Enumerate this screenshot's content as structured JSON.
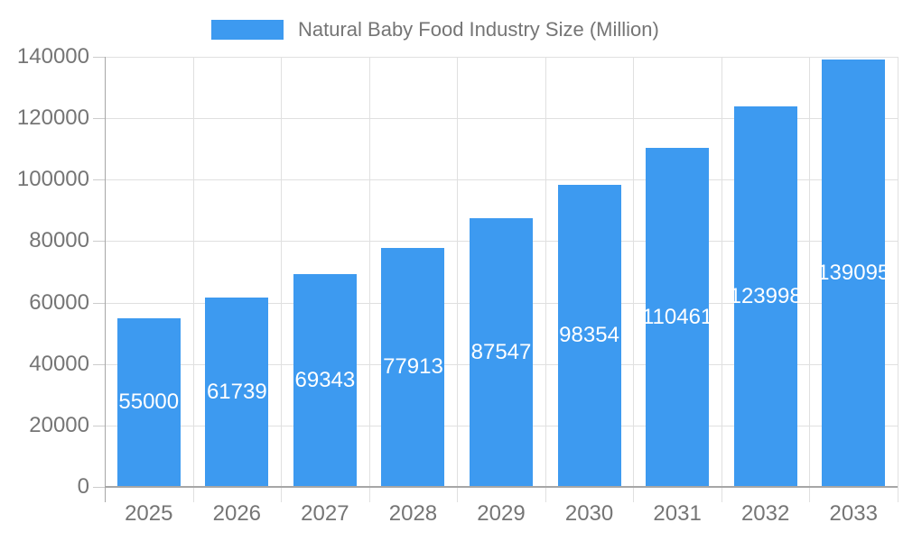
{
  "chart_data": {
    "type": "bar",
    "title": "",
    "legend": {
      "label": "Natural Baby Food Industry Size (Million)",
      "position": "top"
    },
    "categories": [
      "2025",
      "2026",
      "2027",
      "2028",
      "2029",
      "2030",
      "2031",
      "2032",
      "2033"
    ],
    "series": [
      {
        "name": "Natural Baby Food Industry Size (Million)",
        "values": [
          55000,
          61739,
          69343,
          77913,
          87547,
          98354,
          110461,
          123998,
          139095
        ]
      }
    ],
    "value_labels": [
      "55000",
      "61739",
      "69343",
      "77913",
      "87547",
      "98354",
      "110461",
      "123998",
      "139095"
    ],
    "xlabel": "",
    "ylabel": "",
    "ylim": [
      0,
      140000
    ],
    "yticks": [
      0,
      20000,
      40000,
      60000,
      80000,
      100000,
      120000,
      140000
    ],
    "ytick_labels": [
      "0",
      "20000",
      "40000",
      "60000",
      "80000",
      "100000",
      "120000",
      "140000"
    ],
    "grid": "both",
    "value_labels_position": "inside-center",
    "legend_position": "top"
  },
  "colors": {
    "bar": "#3D9AF0",
    "value_label_text": "#FFFFFF",
    "axis_text": "#757575",
    "legend_text": "#757575",
    "gridline": "#E0E0E0",
    "axis_line": "#A6A6A6",
    "tick": "#CCCCCC",
    "background": "#FFFFFF"
  }
}
